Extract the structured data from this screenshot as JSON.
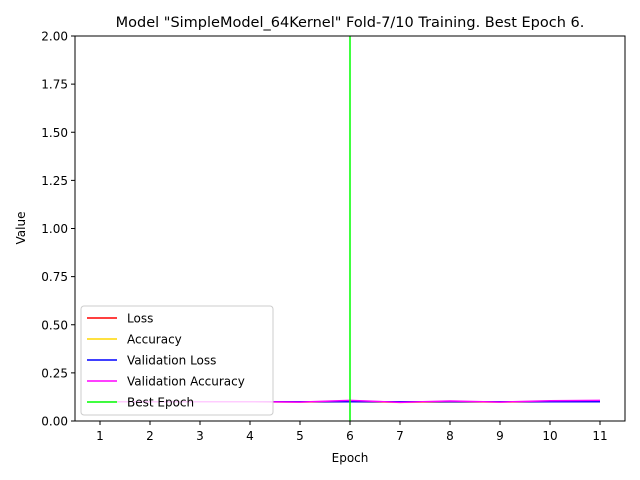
{
  "chart_data": {
    "type": "line",
    "title": "Model \"SimpleModel_64Kernel\" Fold-7/10 Training. Best Epoch 6.",
    "xlabel": "Epoch",
    "ylabel": "Value",
    "x": [
      1,
      2,
      3,
      4,
      5,
      6,
      7,
      8,
      9,
      10,
      11
    ],
    "xlim": [
      0.5,
      11.5
    ],
    "ylim": [
      0,
      2
    ],
    "x_ticks": [
      "1",
      "2",
      "3",
      "4",
      "5",
      "6",
      "7",
      "8",
      "9",
      "10",
      "11"
    ],
    "y_ticks": [
      "0.00",
      "0.25",
      "0.50",
      "0.75",
      "1.00",
      "1.25",
      "1.50",
      "1.75",
      "2.00"
    ],
    "grid": false,
    "legend_position": "lower-left",
    "series": [
      {
        "name": "Loss",
        "color": "#ff0000",
        "values": [
          0.1,
          0.1,
          0.1,
          0.1,
          0.1,
          0.1,
          0.1,
          0.1,
          0.1,
          0.1,
          0.1
        ]
      },
      {
        "name": "Accuracy",
        "color": "#ffd700",
        "values": [
          0.1,
          0.1,
          0.1,
          0.1,
          0.098,
          0.1,
          0.097,
          0.099,
          0.098,
          0.1,
          0.1
        ]
      },
      {
        "name": "Validation Loss",
        "color": "#0000ff",
        "values": [
          0.1,
          0.1,
          0.1,
          0.1,
          0.1,
          0.1,
          0.1,
          0.1,
          0.1,
          0.1,
          0.1
        ]
      },
      {
        "name": "Validation  Accuracy",
        "color": "#ff00ff",
        "values": [
          0.1,
          0.1,
          0.1,
          0.1,
          0.098,
          0.107,
          0.097,
          0.104,
          0.098,
          0.105,
          0.107
        ]
      }
    ],
    "best_epoch": {
      "name": "Best Epoch",
      "x": 6,
      "color": "#00ff00"
    }
  }
}
